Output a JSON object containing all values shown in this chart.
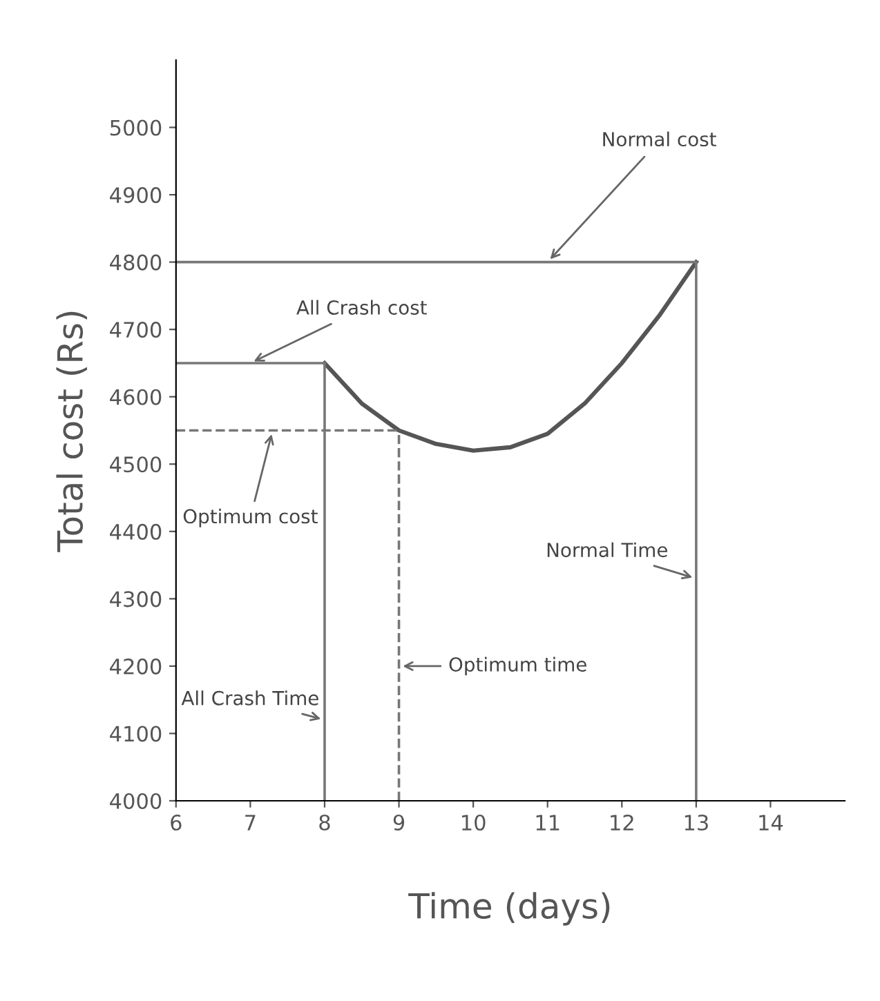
{
  "chart_data": {
    "type": "line",
    "xlabel": "Time (days)",
    "ylabel": "Total cost (Rs)",
    "x": [
      8,
      8.5,
      9,
      9.5,
      10,
      10.5,
      11,
      11.5,
      12,
      12.5,
      13
    ],
    "series": [
      {
        "color": "#555555",
        "values": [
          4650,
          4590,
          4550,
          4530,
          4520,
          4525,
          4545,
          4590,
          4650,
          4720,
          4800
        ]
      }
    ],
    "xlim": [
      6,
      15
    ],
    "ylim": [
      4000,
      5100
    ],
    "xticks": [
      6,
      7,
      8,
      9,
      10,
      11,
      12,
      13,
      14
    ],
    "yticks": [
      4000,
      4100,
      4200,
      4300,
      4400,
      4500,
      4600,
      4700,
      4800,
      4900,
      5000
    ],
    "ref_lines": [
      {
        "axis": "y",
        "value": 4800,
        "color": "#777777",
        "line_style": "solid"
      },
      {
        "axis": "y",
        "value": 4650,
        "color": "#777777",
        "line_style": "solid"
      },
      {
        "axis": "y",
        "value": 4550,
        "color": "#777777",
        "line_style": "dashed"
      },
      {
        "axis": "x",
        "value": 8,
        "color": "#777777",
        "line_style": "solid"
      },
      {
        "axis": "x",
        "value": 9,
        "color": "#777777",
        "line_style": "dashed"
      },
      {
        "axis": "x",
        "value": 13,
        "color": "#777777",
        "line_style": "solid"
      }
    ],
    "annotations": [
      {
        "text": "Normal cost",
        "x": 11,
        "y": 4800
      },
      {
        "text": "All Crash cost",
        "x": 7,
        "y": 4650
      },
      {
        "text": "Optimum cost",
        "x": 7.3,
        "y": 4550
      },
      {
        "text": "Normal Time",
        "x": 13,
        "y": 4330
      },
      {
        "text": "All Crash Time",
        "x": 8,
        "y": 4120
      },
      {
        "text": "Optimum time",
        "x": 9,
        "y": 4200
      }
    ],
    "grid": false,
    "marker": "none",
    "line_style": "solid"
  }
}
